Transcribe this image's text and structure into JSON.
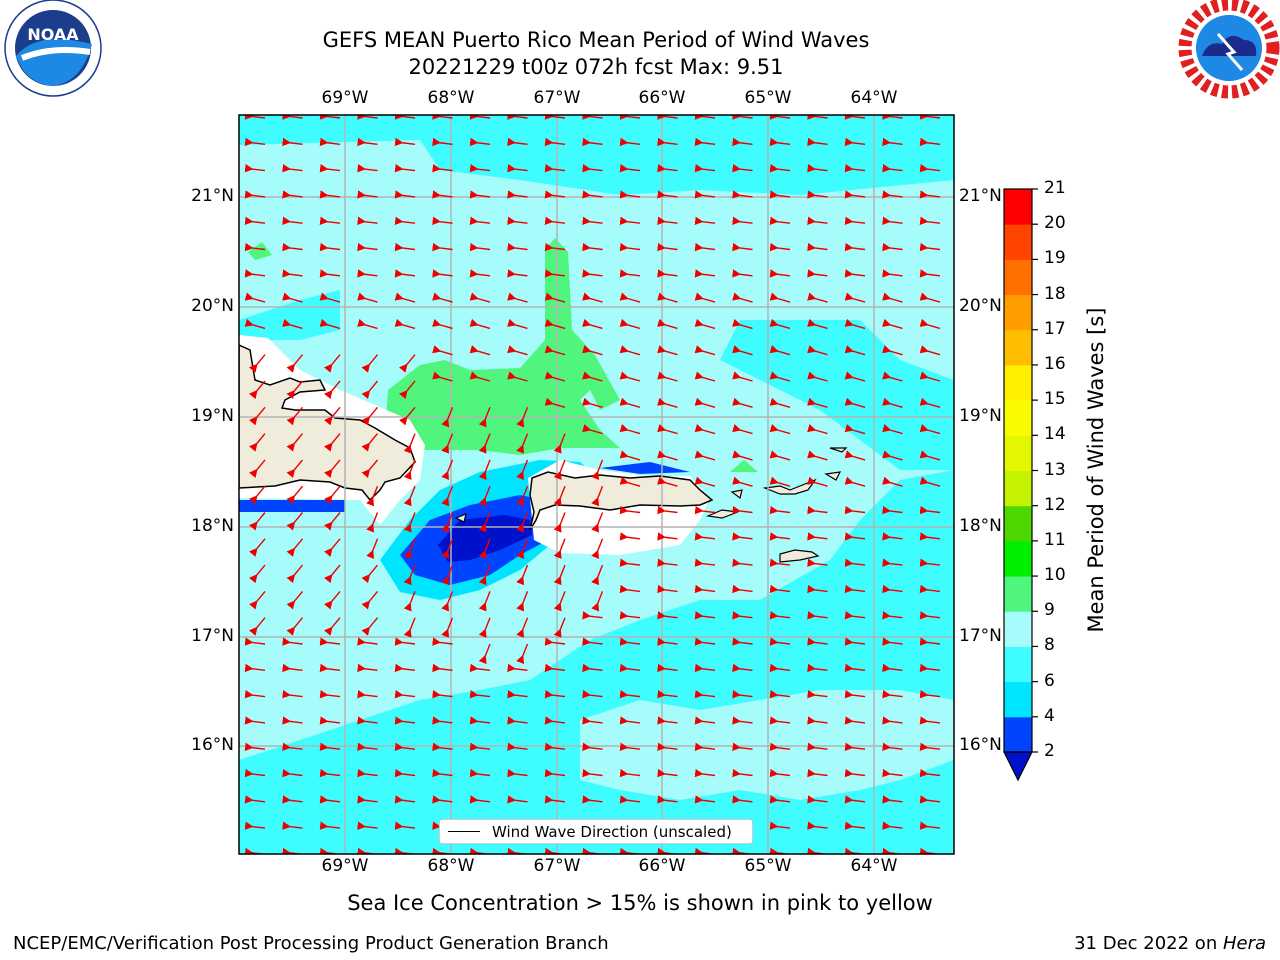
{
  "title": {
    "line1": "GEFS MEAN Puerto Rico Mean Period of Wind Waves",
    "line2": "20221229 t00z 072h fcst   Max: 9.51"
  },
  "axes": {
    "lon_labels": [
      "69°W",
      "68°W",
      "67°W",
      "66°W",
      "65°W",
      "64°W"
    ],
    "lat_labels": [
      "21°N",
      "20°N",
      "19°N",
      "18°N",
      "17°N",
      "16°N"
    ]
  },
  "colorbar": {
    "label": "Mean Period of Wind Waves [s]",
    "ticks": [
      "2",
      "4",
      "6",
      "8",
      "9",
      "10",
      "11",
      "12",
      "13",
      "14",
      "15",
      "16",
      "17",
      "18",
      "19",
      "20",
      "21"
    ],
    "colors": [
      "#0044ff",
      "#00e5ff",
      "#3ffcff",
      "#a6fcfa",
      "#50f57e",
      "#00ef00",
      "#4cd800",
      "#c4f200",
      "#e3f700",
      "#fbfb00",
      "#fff000",
      "#ffbd00",
      "#ff9c00",
      "#ff7000",
      "#ff4400",
      "#ff0000"
    ],
    "under_color": "#0011cc"
  },
  "legend": {
    "label": "Wind Wave Direction (unscaled)"
  },
  "note": "Sea Ice Concentration > 15% is shown in pink to yellow",
  "footer": {
    "left": "NCEP/EMC/Verification Post Processing Product Generation Branch",
    "right_prefix": "31 Dec 2022 on ",
    "right_italic": "Hera"
  },
  "logos": {
    "left": "NOAA",
    "right": "NATIONAL WEATHER SERVICE"
  },
  "colors": {
    "land": "#efecdc",
    "arrows": "#ee0000",
    "grid": "#b3b3b3"
  }
}
